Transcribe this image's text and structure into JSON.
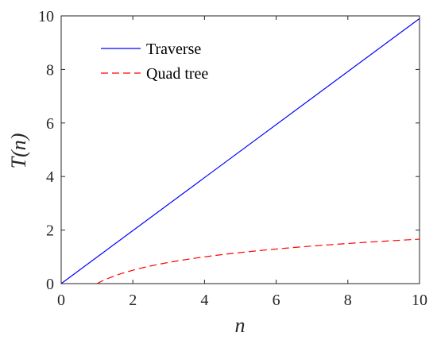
{
  "colors": {
    "traverse": "#0000ff",
    "quadtree": "#ff0000",
    "axis": "#262626",
    "background": "#ffffff"
  },
  "chart_data": {
    "type": "line",
    "xlabel": "n",
    "ylabel": "T(n)",
    "xlim": [
      0,
      10
    ],
    "ylim": [
      0,
      10
    ],
    "xticks": [
      0,
      2,
      4,
      6,
      8,
      10
    ],
    "yticks": [
      0,
      2,
      4,
      6,
      8,
      10
    ],
    "grid": false,
    "legend_position": "top-left",
    "series": [
      {
        "name": "Traverse",
        "style": "solid",
        "x": [
          0,
          10
        ],
        "y": [
          0,
          9.9
        ]
      },
      {
        "name": "Quad tree",
        "style": "dashed",
        "x": [
          1,
          1.5,
          2,
          2.5,
          3,
          4,
          5,
          6,
          7,
          8,
          9,
          10
        ],
        "y": [
          0,
          0.29,
          0.5,
          0.66,
          0.79,
          1.0,
          1.16,
          1.29,
          1.4,
          1.5,
          1.58,
          1.66
        ]
      }
    ]
  }
}
